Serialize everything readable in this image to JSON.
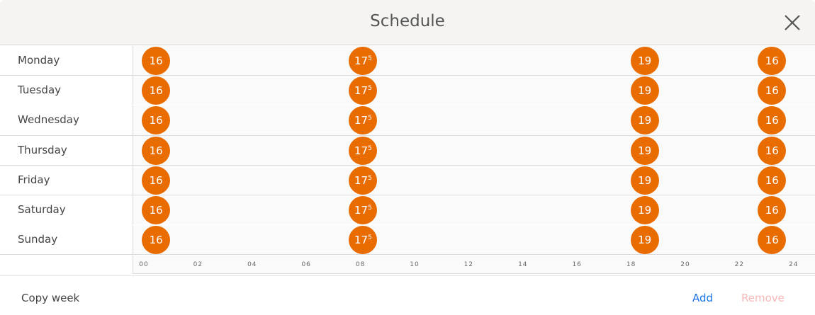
{
  "header": {
    "title": "Schedule",
    "close_icon": "close-icon"
  },
  "days": [
    {
      "label": "Monday",
      "points": [
        {
          "hour": 0.45,
          "temp": "16",
          "sup": ""
        },
        {
          "hour": 8.1,
          "temp": "17",
          "sup": "5"
        },
        {
          "hour": 18.5,
          "temp": "19",
          "sup": ""
        },
        {
          "hour": 23.2,
          "temp": "16",
          "sup": ""
        }
      ]
    },
    {
      "label": "Tuesday",
      "points": [
        {
          "hour": 0.45,
          "temp": "16",
          "sup": ""
        },
        {
          "hour": 8.1,
          "temp": "17",
          "sup": "5"
        },
        {
          "hour": 18.5,
          "temp": "19",
          "sup": ""
        },
        {
          "hour": 23.2,
          "temp": "16",
          "sup": ""
        }
      ]
    },
    {
      "label": "Wednesday",
      "points": [
        {
          "hour": 0.45,
          "temp": "16",
          "sup": ""
        },
        {
          "hour": 8.1,
          "temp": "17",
          "sup": "5"
        },
        {
          "hour": 18.5,
          "temp": "19",
          "sup": ""
        },
        {
          "hour": 23.2,
          "temp": "16",
          "sup": ""
        }
      ]
    },
    {
      "label": "Thursday",
      "points": [
        {
          "hour": 0.45,
          "temp": "16",
          "sup": ""
        },
        {
          "hour": 8.1,
          "temp": "17",
          "sup": "5"
        },
        {
          "hour": 18.5,
          "temp": "19",
          "sup": ""
        },
        {
          "hour": 23.2,
          "temp": "16",
          "sup": ""
        }
      ]
    },
    {
      "label": "Friday",
      "points": [
        {
          "hour": 0.45,
          "temp": "16",
          "sup": ""
        },
        {
          "hour": 8.1,
          "temp": "17",
          "sup": "5"
        },
        {
          "hour": 18.5,
          "temp": "19",
          "sup": ""
        },
        {
          "hour": 23.2,
          "temp": "16",
          "sup": ""
        }
      ]
    },
    {
      "label": "Saturday",
      "points": [
        {
          "hour": 0.45,
          "temp": "16",
          "sup": ""
        },
        {
          "hour": 8.1,
          "temp": "17",
          "sup": "5"
        },
        {
          "hour": 18.5,
          "temp": "19",
          "sup": ""
        },
        {
          "hour": 23.2,
          "temp": "16",
          "sup": ""
        }
      ]
    },
    {
      "label": "Sunday",
      "points": [
        {
          "hour": 0.45,
          "temp": "16",
          "sup": ""
        },
        {
          "hour": 8.1,
          "temp": "17",
          "sup": "5"
        },
        {
          "hour": 18.5,
          "temp": "19",
          "sup": ""
        },
        {
          "hour": 23.2,
          "temp": "16",
          "sup": ""
        }
      ]
    }
  ],
  "axis": {
    "ticks": [
      "00",
      "02",
      "04",
      "06",
      "08",
      "10",
      "12",
      "14",
      "16",
      "18",
      "20",
      "22",
      "24"
    ]
  },
  "footer": {
    "copy_week": "Copy week",
    "add": "Add",
    "remove": "Remove"
  },
  "colors": {
    "point": "#e96c00",
    "add": "#1a73e8",
    "remove_disabled": "#f7b8b8"
  }
}
